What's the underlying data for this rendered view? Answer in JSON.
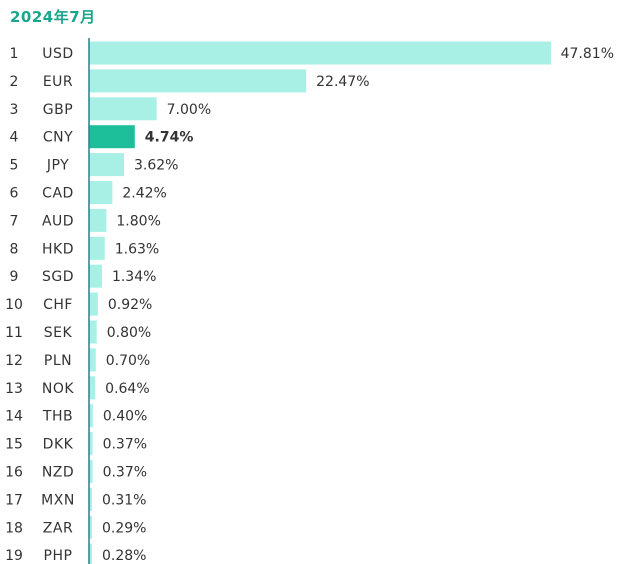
{
  "chart_data": {
    "type": "bar",
    "orientation": "horizontal",
    "title": "2024年7月",
    "ranks": [
      "1",
      "2",
      "3",
      "4",
      "5",
      "6",
      "7",
      "8",
      "9",
      "10",
      "11",
      "12",
      "13",
      "14",
      "15",
      "16",
      "17",
      "18",
      "19"
    ],
    "categories": [
      "USD",
      "EUR",
      "GBP",
      "CNY",
      "JPY",
      "CAD",
      "AUD",
      "HKD",
      "SGD",
      "CHF",
      "SEK",
      "PLN",
      "NOK",
      "THB",
      "DKK",
      "NZD",
      "MXN",
      "ZAR",
      "PHP"
    ],
    "values": [
      47.81,
      22.47,
      7.0,
      4.74,
      3.62,
      2.42,
      1.8,
      1.63,
      1.34,
      0.92,
      0.8,
      0.7,
      0.64,
      0.4,
      0.37,
      0.37,
      0.31,
      0.29,
      0.28
    ],
    "value_labels": [
      "47.81%",
      "22.47%",
      "7.00%",
      "4.74%",
      "3.62%",
      "2.42%",
      "1.80%",
      "1.63%",
      "1.34%",
      "0.92%",
      "0.80%",
      "0.70%",
      "0.64%",
      "0.40%",
      "0.37%",
      "0.37%",
      "0.31%",
      "0.29%",
      "0.28%"
    ],
    "highlight_category": "CNY",
    "colors": {
      "bar": "#a8efe6",
      "highlight_bar": "#1dbf9b",
      "axis": "#2a7f8a",
      "title": "#1aa58c"
    },
    "grid": false,
    "legend": "none"
  }
}
